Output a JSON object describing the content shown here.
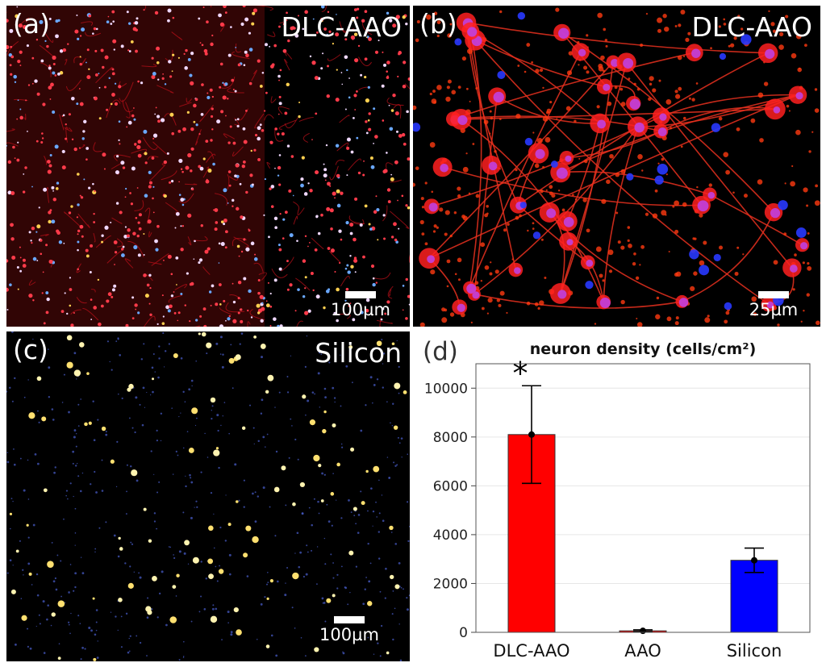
{
  "panels": {
    "a": {
      "label": "(a)",
      "title": "DLC-AAO",
      "scale": "100µm"
    },
    "b": {
      "label": "(b)",
      "title": "DLC-AAO",
      "scale": "25µm"
    },
    "c": {
      "label": "(c)",
      "title": "Silicon",
      "scale": "100µm"
    },
    "d": {
      "label": "(d)"
    }
  },
  "chart_data": {
    "type": "bar",
    "title": "neuron density (cells/cm²)",
    "categories": [
      "DLC-AAO",
      "AAO",
      "Silicon"
    ],
    "values": [
      8100,
      60,
      2950
    ],
    "error": [
      2000,
      40,
      500
    ],
    "colors": [
      "#ff0000",
      "#ff0000",
      "#0000ff"
    ],
    "significance": [
      "*",
      "",
      ""
    ],
    "ylim": [
      0,
      11000
    ],
    "yticks": [
      0,
      2000,
      4000,
      6000,
      8000,
      10000
    ],
    "xlabel": "",
    "ylabel": "",
    "grid": true
  }
}
